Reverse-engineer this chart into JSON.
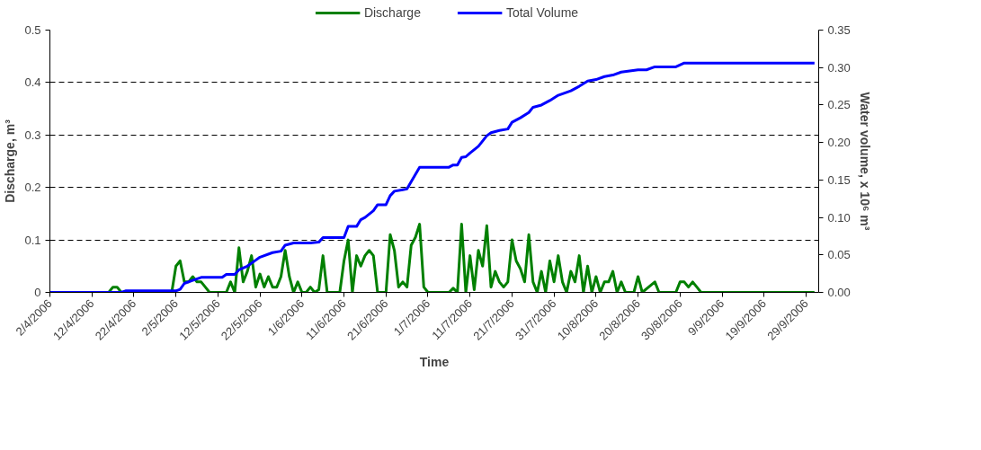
{
  "chart_data": {
    "type": "line",
    "xlabel": "Time",
    "ylabel": "Discharge, m³",
    "y2label": "Water volume, x 10⁶ m³",
    "xlim": [
      "2006-04-02",
      "2006-10-02"
    ],
    "xticks": [
      {
        "value": "2006-04-02",
        "label": "2/4/2006"
      },
      {
        "value": "2006-04-12",
        "label": "12/4/2006"
      },
      {
        "value": "2006-04-22",
        "label": "22/4/2006"
      },
      {
        "value": "2006-05-02",
        "label": "2/5/2006"
      },
      {
        "value": "2006-05-12",
        "label": "12/5/2006"
      },
      {
        "value": "2006-05-22",
        "label": "22/5/2006"
      },
      {
        "value": "2006-06-01",
        "label": "1/6/2006"
      },
      {
        "value": "2006-06-11",
        "label": "11/6/2006"
      },
      {
        "value": "2006-06-21",
        "label": "21/6/2006"
      },
      {
        "value": "2006-07-01",
        "label": "1/7/2006"
      },
      {
        "value": "2006-07-11",
        "label": "11/7/2006"
      },
      {
        "value": "2006-07-21",
        "label": "21/7/2006"
      },
      {
        "value": "2006-07-31",
        "label": "31/7/2006"
      },
      {
        "value": "2006-08-10",
        "label": "10/8/2006"
      },
      {
        "value": "2006-08-20",
        "label": "20/8/2006"
      },
      {
        "value": "2006-08-30",
        "label": "30/8/2006"
      },
      {
        "value": "2006-09-09",
        "label": "9/9/2006"
      },
      {
        "value": "2006-09-19",
        "label": "19/9/2006"
      },
      {
        "value": "2006-09-29",
        "label": "29/9/2006"
      }
    ],
    "ylim": [
      0,
      0.5
    ],
    "yticks": [
      0,
      0.1,
      0.2,
      0.3,
      0.4,
      0.5
    ],
    "y2lim": [
      0,
      0.35
    ],
    "y2ticks": [
      {
        "value": 0,
        "label": "0.00"
      },
      {
        "value": 0.05,
        "label": "0.05"
      },
      {
        "value": 0.1,
        "label": "0.10"
      },
      {
        "value": 0.15,
        "label": "0.15"
      },
      {
        "value": 0.2,
        "label": "0.20"
      },
      {
        "value": 0.25,
        "label": "0.25"
      },
      {
        "value": 0.3,
        "label": "0.30"
      },
      {
        "value": 0.35,
        "label": "0.35"
      }
    ],
    "grid": "y",
    "legend": "top",
    "marker": "none",
    "line_style": "solid",
    "series": [
      {
        "name": "Discharge",
        "color": "#008000",
        "x": [
          "2006-04-02",
          "2006-04-16",
          "2006-04-17",
          "2006-04-18",
          "2006-04-19",
          "2006-05-01",
          "2006-05-02",
          "2006-05-03",
          "2006-05-04",
          "2006-05-05",
          "2006-05-06",
          "2006-05-07",
          "2006-05-08",
          "2006-05-09",
          "2006-05-10",
          "2006-05-14",
          "2006-05-15",
          "2006-05-16",
          "2006-05-17",
          "2006-05-18",
          "2006-05-19",
          "2006-05-20",
          "2006-05-21",
          "2006-05-22",
          "2006-05-23",
          "2006-05-24",
          "2006-05-25",
          "2006-05-26",
          "2006-05-27",
          "2006-05-28",
          "2006-05-29",
          "2006-05-30",
          "2006-05-31",
          "2006-06-01",
          "2006-06-02",
          "2006-06-03",
          "2006-06-04",
          "2006-06-05",
          "2006-06-06",
          "2006-06-07",
          "2006-06-10",
          "2006-06-11",
          "2006-06-12",
          "2006-06-13",
          "2006-06-14",
          "2006-06-15",
          "2006-06-16",
          "2006-06-17",
          "2006-06-18",
          "2006-06-19",
          "2006-06-21",
          "2006-06-22",
          "2006-06-23",
          "2006-06-24",
          "2006-06-25",
          "2006-06-26",
          "2006-06-27",
          "2006-06-28",
          "2006-06-29",
          "2006-06-30",
          "2006-07-01",
          "2006-07-06",
          "2006-07-07",
          "2006-07-08",
          "2006-07-09",
          "2006-07-10",
          "2006-07-11",
          "2006-07-12",
          "2006-07-13",
          "2006-07-14",
          "2006-07-15",
          "2006-07-16",
          "2006-07-17",
          "2006-07-18",
          "2006-07-19",
          "2006-07-20",
          "2006-07-21",
          "2006-07-22",
          "2006-07-23",
          "2006-07-24",
          "2006-07-25",
          "2006-07-26",
          "2006-07-27",
          "2006-07-28",
          "2006-07-29",
          "2006-07-30",
          "2006-07-31",
          "2006-08-01",
          "2006-08-02",
          "2006-08-03",
          "2006-08-04",
          "2006-08-05",
          "2006-08-06",
          "2006-08-07",
          "2006-08-08",
          "2006-08-09",
          "2006-08-10",
          "2006-08-11",
          "2006-08-12",
          "2006-08-13",
          "2006-08-14",
          "2006-08-15",
          "2006-08-16",
          "2006-08-17",
          "2006-08-19",
          "2006-08-20",
          "2006-08-21",
          "2006-08-24",
          "2006-08-25",
          "2006-08-29",
          "2006-08-30",
          "2006-08-31",
          "2006-09-01",
          "2006-09-02",
          "2006-09-03",
          "2006-09-04",
          "2006-10-01"
        ],
        "values": [
          0,
          0,
          0.01,
          0.01,
          0,
          0,
          0.05,
          0.06,
          0.02,
          0.02,
          0.03,
          0.02,
          0.02,
          0.01,
          0,
          0,
          0.02,
          0,
          0.085,
          0.02,
          0.04,
          0.07,
          0.01,
          0.035,
          0.01,
          0.03,
          0.01,
          0.01,
          0.03,
          0.08,
          0.03,
          0,
          0.02,
          0,
          0,
          0.01,
          0,
          0.005,
          0.07,
          0,
          0,
          0.06,
          0.1,
          0,
          0.07,
          0.05,
          0.07,
          0.08,
          0.07,
          0,
          0,
          0.11,
          0.08,
          0.01,
          0.02,
          0.01,
          0.09,
          0.105,
          0.13,
          0.01,
          0,
          0,
          0.008,
          0,
          0.13,
          0,
          0.07,
          0.005,
          0.08,
          0.05,
          0.127,
          0.01,
          0.04,
          0.02,
          0.01,
          0.02,
          0.1,
          0.06,
          0.045,
          0.02,
          0.11,
          0.02,
          0,
          0.04,
          0,
          0.06,
          0.02,
          0.07,
          0.02,
          0,
          0.04,
          0.02,
          0.07,
          0,
          0.05,
          0,
          0.03,
          0,
          0.02,
          0.02,
          0.04,
          0,
          0.02,
          0,
          0,
          0.03,
          0,
          0.02,
          0,
          0,
          0.02,
          0.02,
          0.01,
          0.02,
          0.01,
          0,
          0
        ]
      },
      {
        "name": "Total Volume",
        "color": "#0000ff",
        "axis": "y2",
        "x": [
          "2006-04-02",
          "2006-04-19",
          "2006-04-20",
          "2006-05-02",
          "2006-05-03",
          "2006-05-04",
          "2006-05-06",
          "2006-05-08",
          "2006-05-13",
          "2006-05-14",
          "2006-05-16",
          "2006-05-17",
          "2006-05-19",
          "2006-05-21",
          "2006-05-22",
          "2006-05-25",
          "2006-05-27",
          "2006-05-28",
          "2006-05-30",
          "2006-06-03",
          "2006-06-05",
          "2006-06-06",
          "2006-06-11",
          "2006-06-12",
          "2006-06-14",
          "2006-06-15",
          "2006-06-16",
          "2006-06-18",
          "2006-06-19",
          "2006-06-21",
          "2006-06-22",
          "2006-06-23",
          "2006-06-25",
          "2006-06-26",
          "2006-06-29",
          "2006-07-06",
          "2006-07-07",
          "2006-07-08",
          "2006-07-09",
          "2006-07-10",
          "2006-07-11",
          "2006-07-13",
          "2006-07-15",
          "2006-07-16",
          "2006-07-18",
          "2006-07-20",
          "2006-07-21",
          "2006-07-23",
          "2006-07-25",
          "2006-07-26",
          "2006-07-28",
          "2006-07-30",
          "2006-08-01",
          "2006-08-04",
          "2006-08-06",
          "2006-08-08",
          "2006-08-10",
          "2006-08-12",
          "2006-08-14",
          "2006-08-16",
          "2006-08-20",
          "2006-08-22",
          "2006-08-24",
          "2006-08-29",
          "2006-08-31",
          "2006-10-01"
        ],
        "values": [
          0,
          0,
          0.002,
          0.002,
          0.004,
          0.012,
          0.016,
          0.02,
          0.02,
          0.024,
          0.024,
          0.03,
          0.035,
          0.043,
          0.047,
          0.053,
          0.055,
          0.063,
          0.066,
          0.066,
          0.067,
          0.073,
          0.073,
          0.088,
          0.088,
          0.097,
          0.1,
          0.109,
          0.117,
          0.117,
          0.129,
          0.135,
          0.137,
          0.138,
          0.167,
          0.167,
          0.17,
          0.17,
          0.18,
          0.181,
          0.186,
          0.195,
          0.209,
          0.213,
          0.216,
          0.218,
          0.227,
          0.233,
          0.24,
          0.247,
          0.25,
          0.256,
          0.263,
          0.269,
          0.275,
          0.282,
          0.284,
          0.288,
          0.29,
          0.294,
          0.297,
          0.297,
          0.301,
          0.301,
          0.306,
          0.306
        ]
      }
    ]
  }
}
